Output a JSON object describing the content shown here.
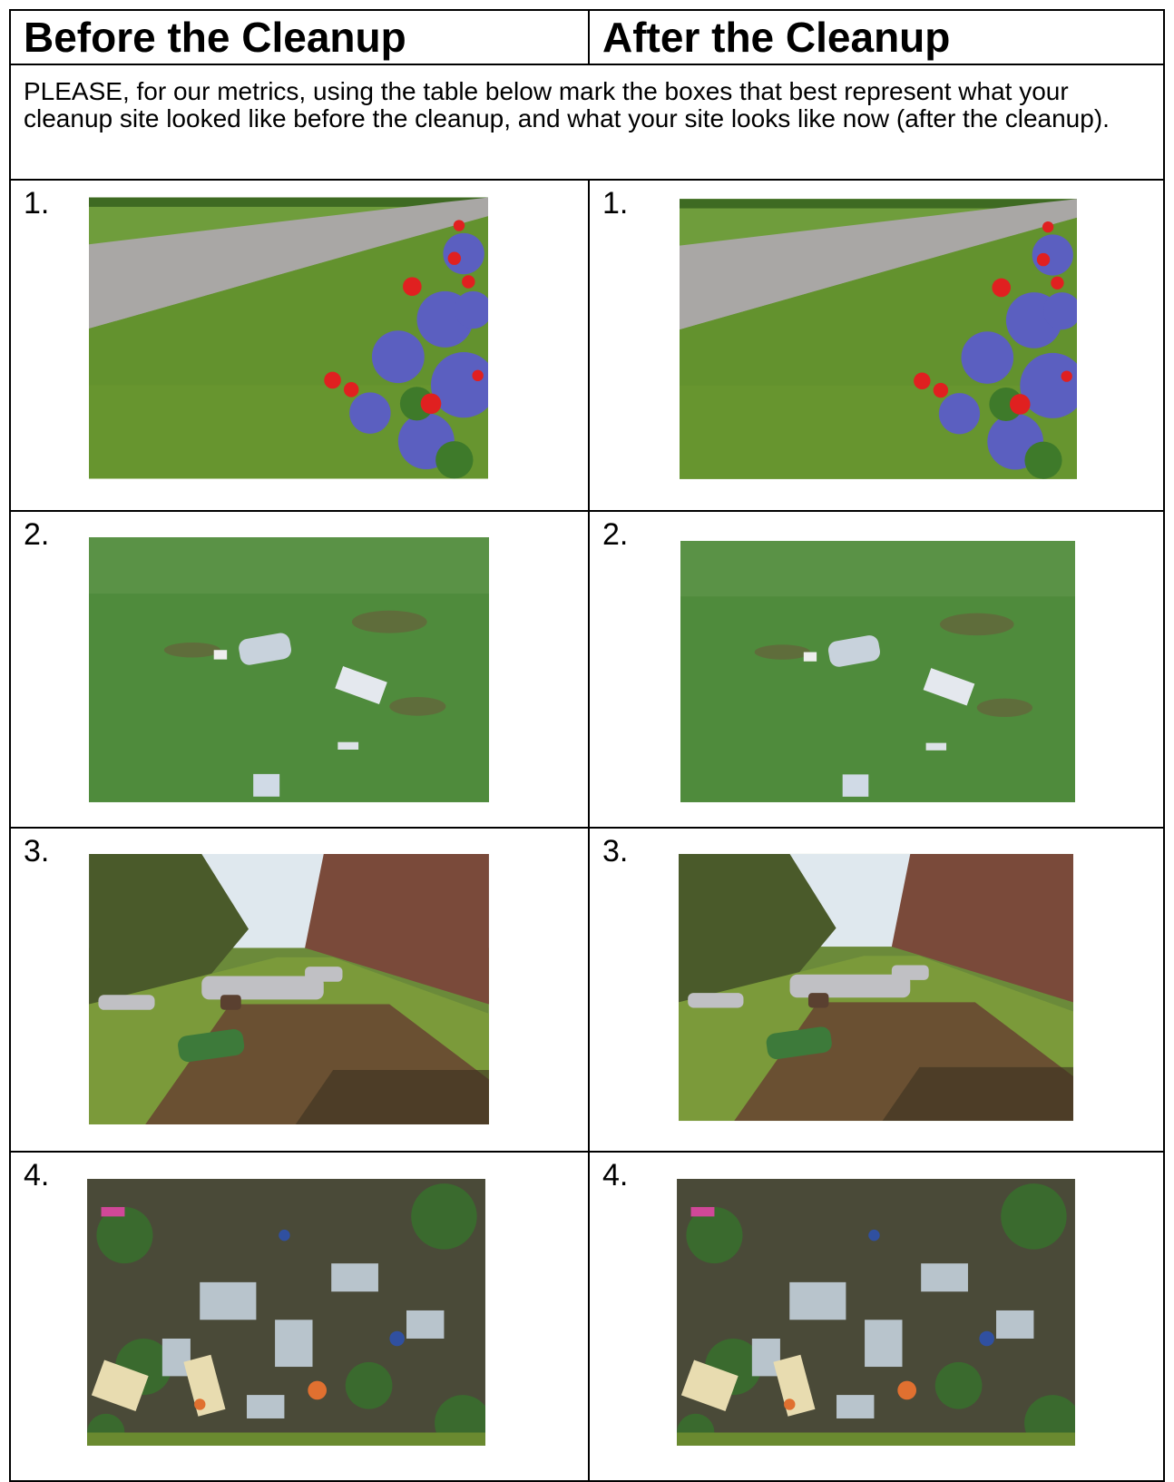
{
  "header": {
    "before": "Before the Cleanup",
    "after": "After the Cleanup"
  },
  "instructions": "PLEASE, for our metrics, using the table below mark the boxes that best represent what your cleanup site looked like before the cleanup, and what your site looks like now (after the cleanup).",
  "table": {
    "rows": [
      [
        "1.",
        "1."
      ],
      [
        "2.",
        "2."
      ],
      [
        "3.",
        "3."
      ],
      [
        "4.",
        "4."
      ]
    ]
  }
}
